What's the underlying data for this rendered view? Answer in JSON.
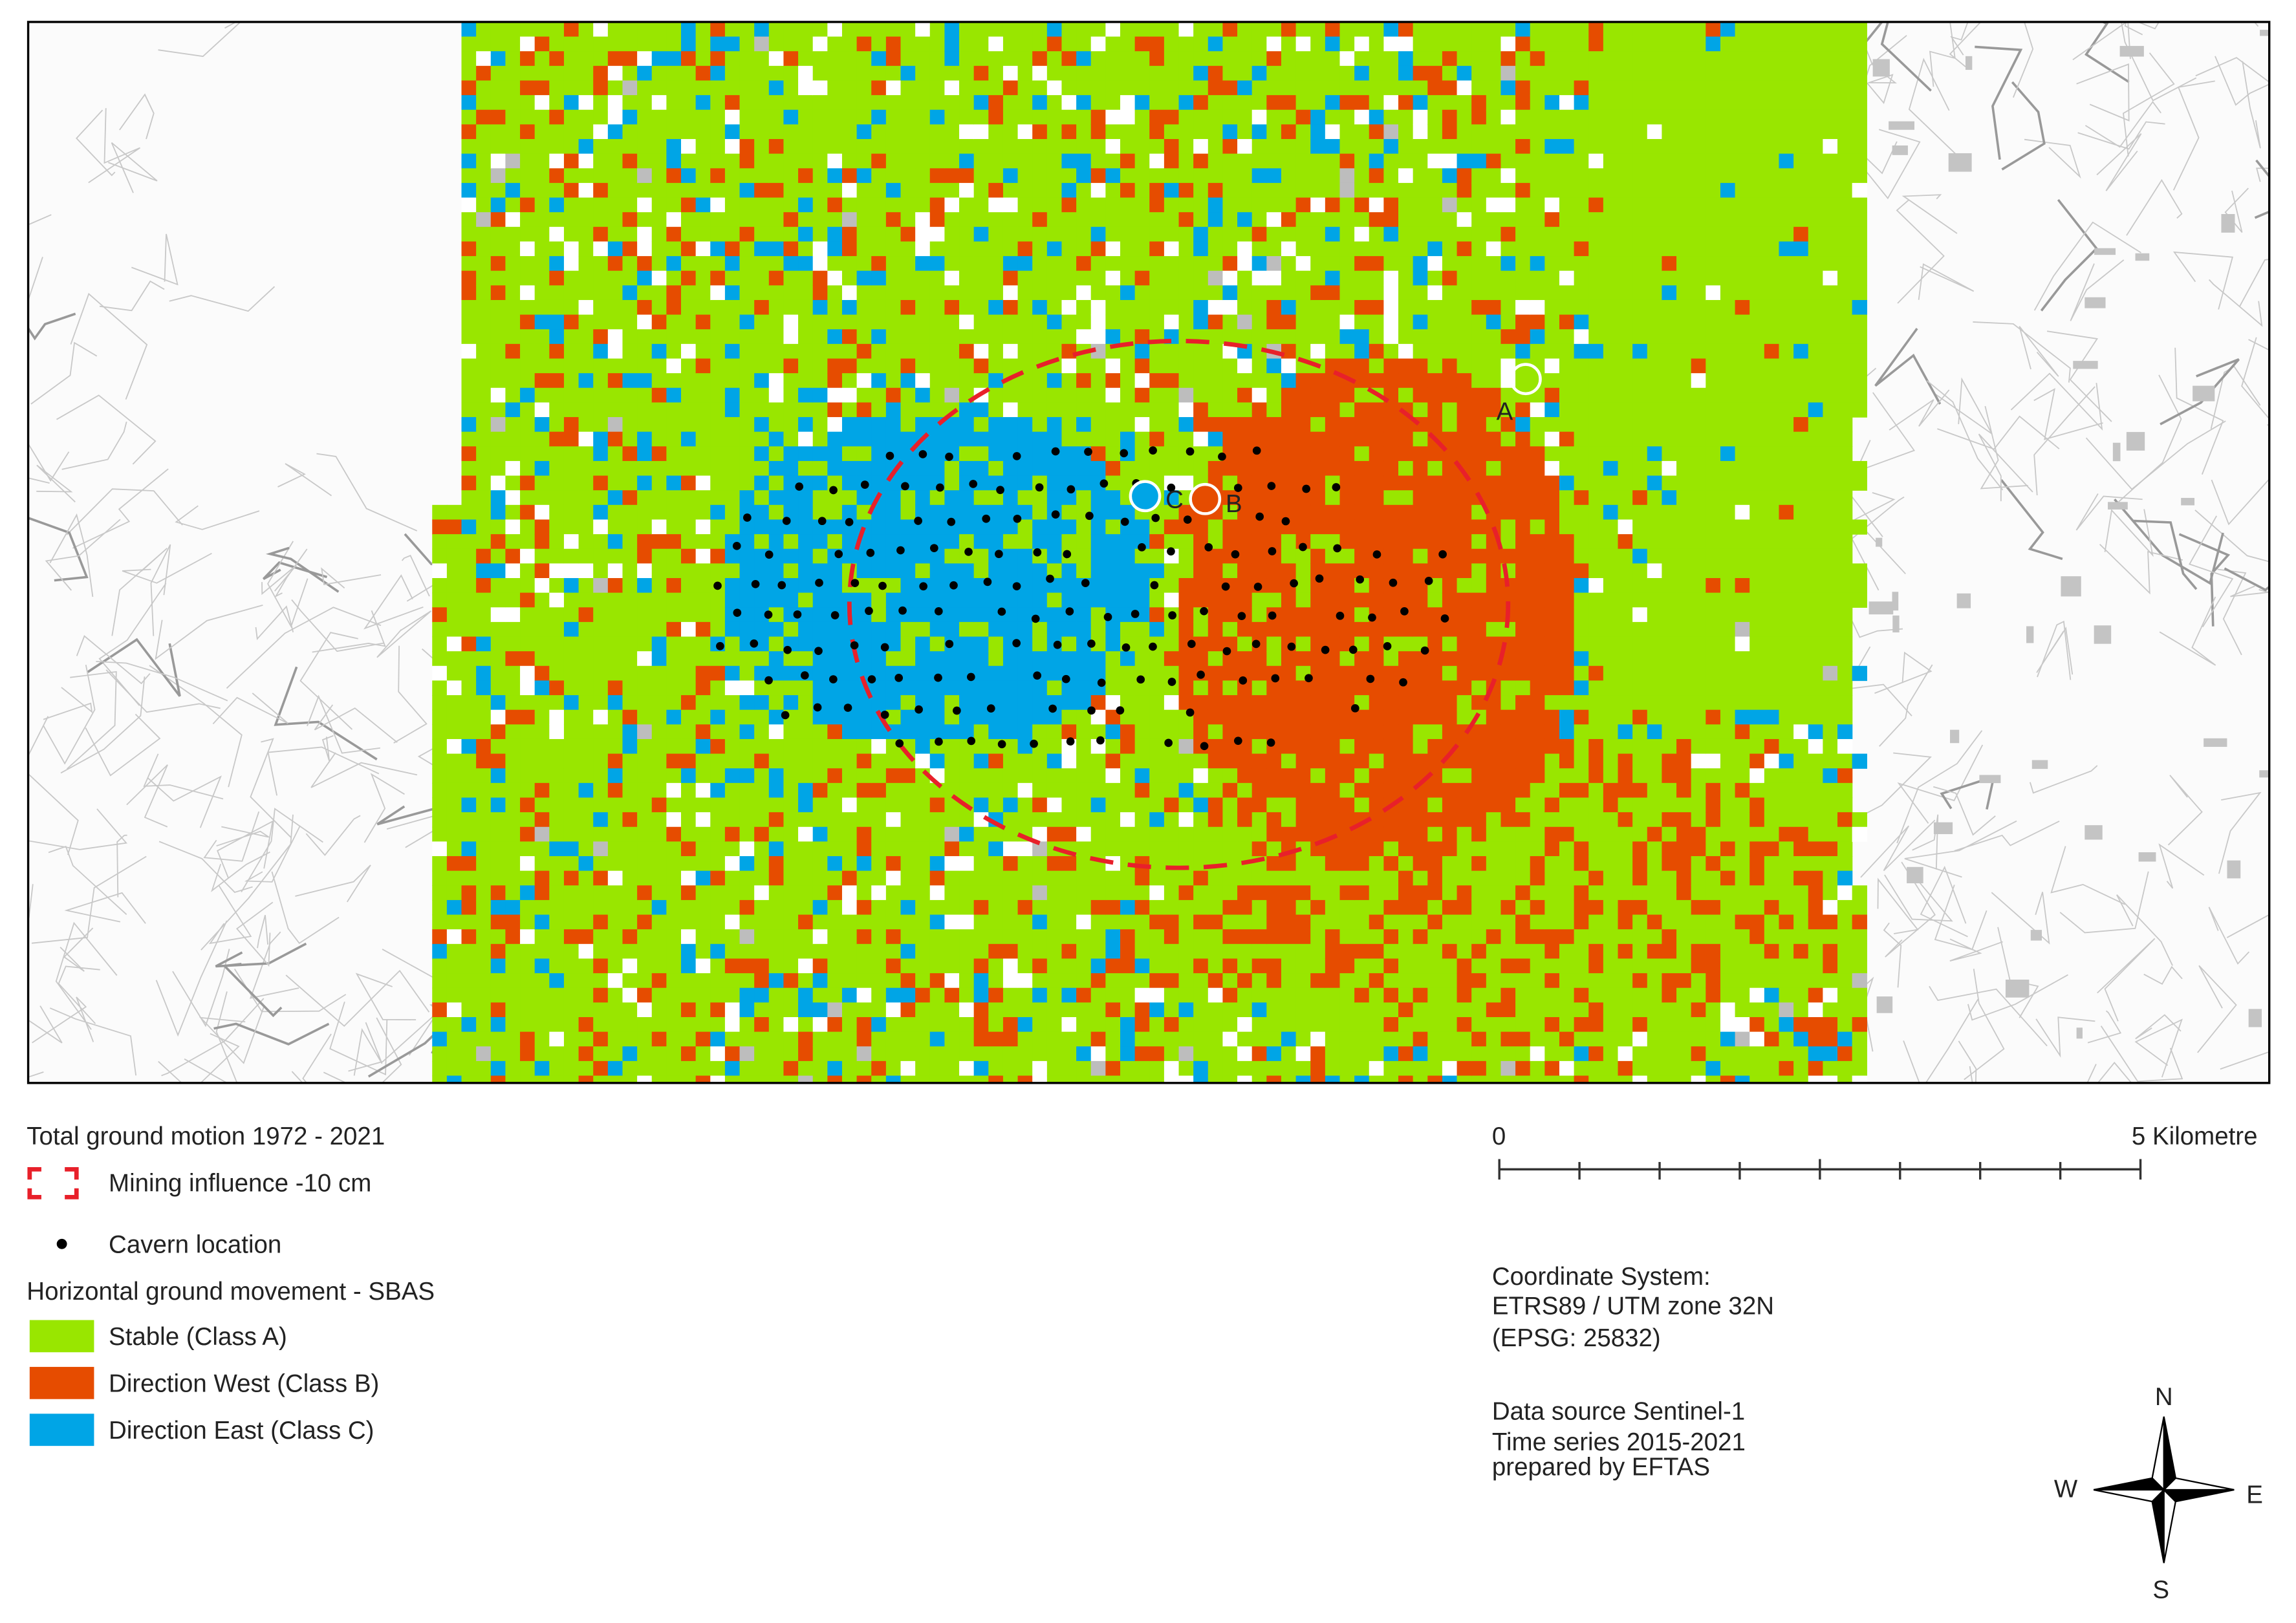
{
  "map": {
    "point_labels": [
      "A",
      "B",
      "C"
    ]
  },
  "legend": {
    "title": "Total ground motion 1972 - 2021",
    "mining_influence": "Mining influence -10 cm",
    "cavern": "Cavern location",
    "section_title": "Horizontal ground movement - SBAS",
    "classes": [
      {
        "label": "Stable (Class A)",
        "color": "#99e600"
      },
      {
        "label": "Direction West (Class B)",
        "color": "#e64c00"
      },
      {
        "label": "Direction East (Class C)",
        "color": "#00a5e6"
      }
    ]
  },
  "scale_bar": {
    "start": "0",
    "end": "5 Kilometre"
  },
  "info": {
    "coordinate_system": [
      "Coordinate System:",
      "ETRS89 / UTM zone 32N",
      "(EPSG: 25832)"
    ],
    "data_source": [
      "Data source Sentinel-1",
      "Time series 2015-2021",
      "prepared by EFTAS"
    ]
  },
  "compass": {
    "n": "N",
    "e": "E",
    "s": "S",
    "w": "W"
  }
}
